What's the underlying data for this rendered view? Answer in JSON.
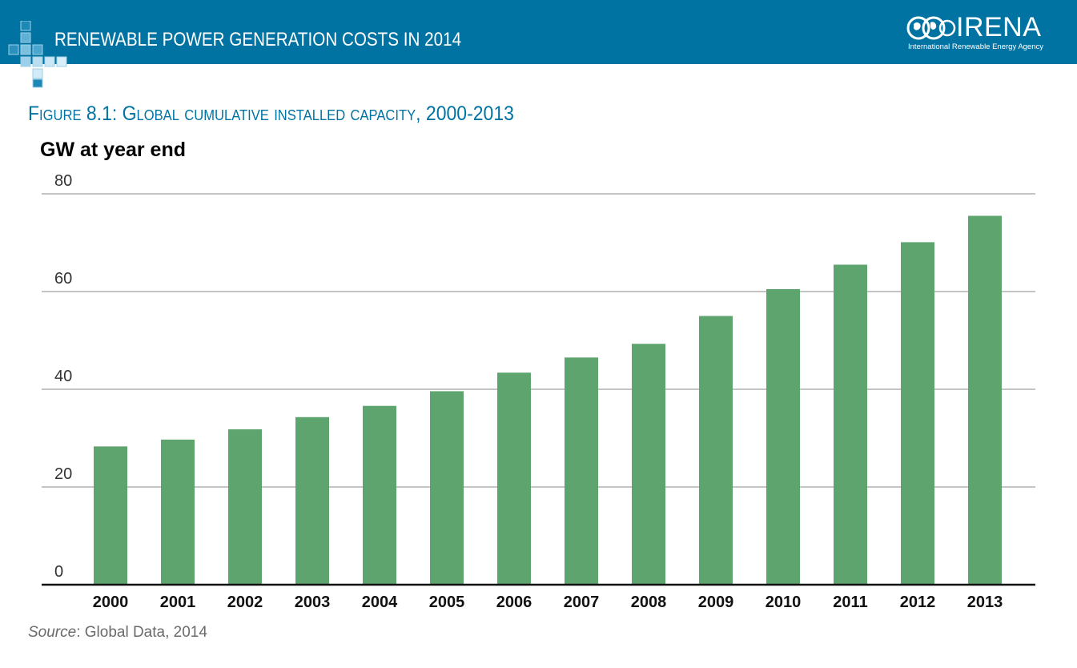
{
  "header": {
    "title": "RENEWABLE POWER GENERATION COSTS IN 2014",
    "logo_name": "IRENA",
    "logo_subtitle": "International Renewable Energy Agency",
    "background_color": "#0073a3"
  },
  "figure": {
    "title": "Figure 8.1: Global cumulative installed capacity, 2000-2013",
    "source_label": "Source",
    "source_text": ": Global Data, 2014"
  },
  "chart_data": {
    "type": "bar",
    "title": "Figure 8.1: Global cumulative installed capacity, 2000-2013",
    "ylabel": "GW at year end",
    "xlabel": "",
    "categories": [
      "2000",
      "2001",
      "2002",
      "2003",
      "2004",
      "2005",
      "2006",
      "2007",
      "2008",
      "2009",
      "2010",
      "2011",
      "2012",
      "2013"
    ],
    "values": [
      28.3,
      29.7,
      31.8,
      34.3,
      36.6,
      39.6,
      43.4,
      46.5,
      49.3,
      55.0,
      60.5,
      65.5,
      70.1,
      75.5
    ],
    "ylim": [
      0,
      80
    ],
    "yticks": [
      0,
      20,
      40,
      60,
      80
    ],
    "grid": true,
    "bar_color": "#5da46f"
  }
}
